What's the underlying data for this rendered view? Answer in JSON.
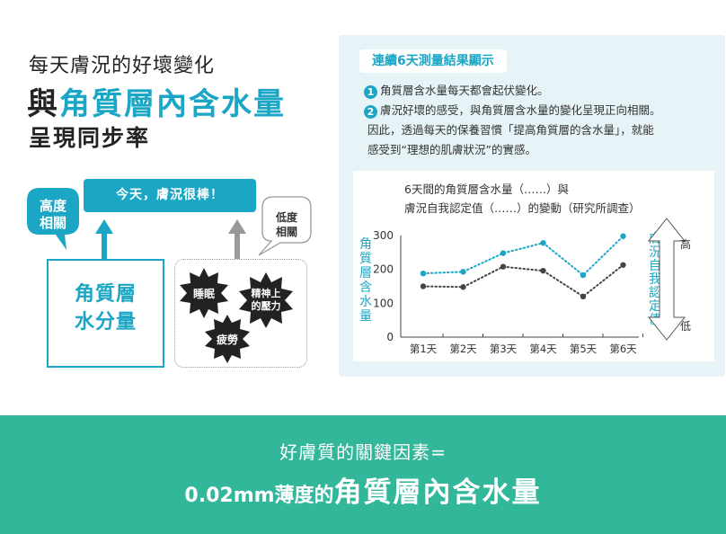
{
  "header": {
    "line1": "每天膚況的好壞變化",
    "line2_prefix": "與",
    "line2_highlight": "角質層內含水量",
    "line3": "呈現同步率"
  },
  "diagram": {
    "banner": "今天，膚況很棒！",
    "high_corr": [
      "高度",
      "相關"
    ],
    "low_corr": [
      "低度",
      "相關"
    ],
    "moisture_label": [
      "角質層",
      "水分量"
    ],
    "factors": {
      "sleep": "睡眠",
      "stress": [
        "精神上",
        "的壓力"
      ],
      "fatigue": "疲勞"
    }
  },
  "panel": {
    "title": "連續6天測量結果顯示",
    "point1_num": "1",
    "point1": "角質層含水量每天都會起伏變化。",
    "point2_num": "2",
    "point2_line1": "膚況好壞的感受，與角質層含水量的變化呈現正向相關。",
    "point2_line2": "因此，透過每天的保養習慣「提高角質層的含水量」，就能",
    "point2_line3": "感受到“理想的肌膚狀況”的實感。"
  },
  "chart_data": {
    "type": "line",
    "title_line1": "6天間的角質層含水量（……）與",
    "title_line2": "膚況自我認定值（……）的變動（研究所調查）",
    "categories": [
      "第1天",
      "第2天",
      "第3天",
      "第4天",
      "第5天",
      "第6天"
    ],
    "ylabel": "角質層含水量",
    "y2label": "膚況自我認定值",
    "y2_high": "高",
    "y2_low": "低",
    "ylim": [
      0,
      300
    ],
    "yticks": [
      "300",
      "200",
      "100",
      "0"
    ],
    "series": [
      {
        "values": [
          188,
          193,
          248,
          278,
          183,
          298
        ],
        "color": "#1aa6c4"
      },
      {
        "values": [
          150,
          148,
          208,
          196,
          120,
          213
        ],
        "color": "#444444"
      }
    ]
  },
  "footer": {
    "line1": "好膚質的關鍵因素=",
    "line2_small": "0.02mm薄度的",
    "line2_big": "角質層內含水量"
  }
}
